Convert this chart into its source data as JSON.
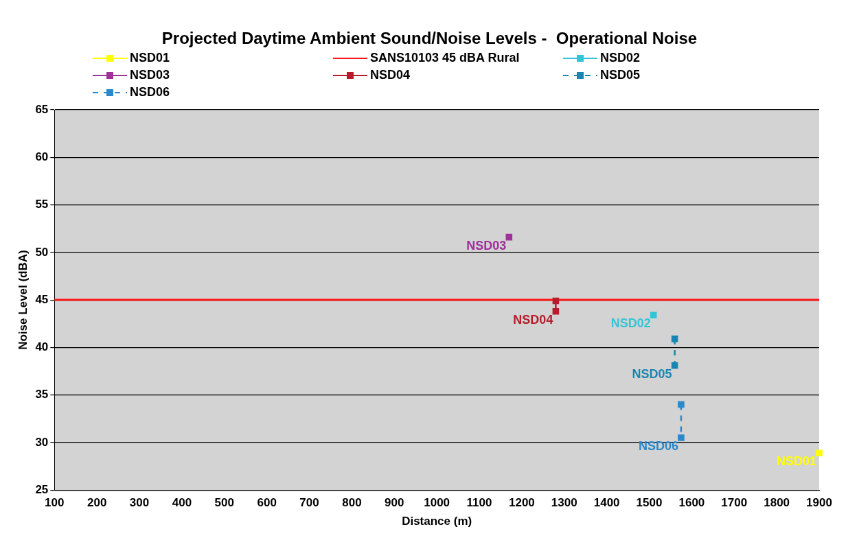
{
  "chart_data": {
    "type": "line",
    "title": "Projected Daytime Ambient Sound/Noise Levels -  Operational Noise",
    "xlabel": "Distance (m)",
    "ylabel": "Noise Level (dBA)",
    "xlim": [
      100,
      1900
    ],
    "xticks": [
      100,
      200,
      300,
      400,
      500,
      600,
      700,
      800,
      900,
      1000,
      1100,
      1200,
      1300,
      1400,
      1500,
      1600,
      1700,
      1800,
      1900
    ],
    "ylim": [
      25,
      65
    ],
    "yticks": [
      25,
      30,
      35,
      40,
      45,
      50,
      55,
      60,
      65
    ],
    "grid": "y",
    "legend": "top",
    "marker": "square",
    "ref_lines": [
      {
        "axis": "y",
        "value": 45,
        "label": "SANS10103 45 dBA Rural",
        "color": "#ff1a1a"
      }
    ],
    "series": [
      {
        "name": "NSD01",
        "color": "#ffff00",
        "x": [
          1900
        ],
        "values": [
          28.9
        ]
      },
      {
        "name": "NSD02",
        "color": "#33c4d8",
        "x": [
          1510
        ],
        "values": [
          43.4
        ]
      },
      {
        "name": "NSD03",
        "color": "#a0309a",
        "x": [
          1170
        ],
        "values": [
          51.6
        ]
      },
      {
        "name": "NSD04",
        "color": "#b81c2c",
        "x": [
          1280,
          1280
        ],
        "values": [
          44.9,
          43.8
        ]
      },
      {
        "name": "NSD05",
        "color": "#1a86b0",
        "x": [
          1560,
          1560
        ],
        "values": [
          40.9,
          38.1
        ],
        "line_style": "dashed"
      },
      {
        "name": "NSD06",
        "color": "#2a88cc",
        "x": [
          1575,
          1575
        ],
        "values": [
          34.0,
          30.5
        ],
        "line_style": "dashed"
      }
    ]
  }
}
